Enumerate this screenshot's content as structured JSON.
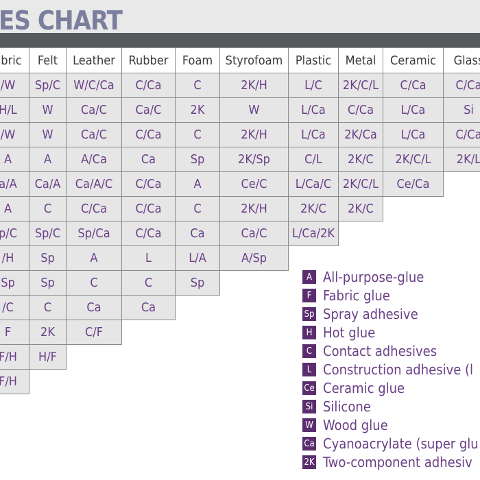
{
  "chart_data": {
    "type": "table",
    "title": "ES CHART",
    "columns": [
      "abric",
      "Felt",
      "Leather",
      "Rubber",
      "Foam",
      "Styrofoam",
      "Plastic",
      "Metal",
      "Ceramic",
      "Glass"
    ],
    "rows": [
      [
        "/W",
        "Sp/C",
        "W/C/Ca",
        "C/Ca",
        "C",
        "2K/H",
        "L/C",
        "2K/C/L",
        "C/Ca",
        "C/Ca"
      ],
      [
        "H/L",
        "W",
        "Ca/C",
        "Ca/C",
        "2K",
        "W",
        "L/Ca",
        "C/Ca",
        "L/Ca",
        "Si"
      ],
      [
        "/W",
        "W",
        "Ca/C",
        "C/Ca",
        "C",
        "2K/H",
        "L/Ca",
        "2K/Ca",
        "L/Ca",
        "C/Ca"
      ],
      [
        "A",
        "A",
        "A/Ca",
        "Ca",
        "Sp",
        "2K/Sp",
        "C/L",
        "2K/C",
        "2K/C/L",
        "2K/L"
      ],
      [
        "a/A",
        "Ca/A",
        "Ca/A/C",
        "C/Ca",
        "A",
        "Ce/C",
        "L/Ca/C",
        "2K/C/L",
        "Ce/Ca"
      ],
      [
        "A",
        "C",
        "C/Ca",
        "C/Ca",
        "C",
        "2K/H",
        "2K/C",
        "2K/C"
      ],
      [
        "p/C",
        "Sp/C",
        "Sp/Ca",
        "C/Ca",
        "Ca",
        "Ca/C",
        "L/Ca/2K"
      ],
      [
        "/H",
        "Sp",
        "A",
        "L",
        "L/A",
        "A/Sp"
      ],
      [
        "Sp",
        "Sp",
        "C",
        "C",
        "Sp"
      ],
      [
        "/C",
        "C",
        "Ca",
        "Ca"
      ],
      [
        "F",
        "2K",
        "C/F"
      ],
      [
        "F/H",
        "H/F"
      ],
      [
        "F/H"
      ]
    ]
  },
  "legend": [
    {
      "code": "A",
      "label": "All-purpose-glue"
    },
    {
      "code": "F",
      "label": "Fabric glue"
    },
    {
      "code": "Sp",
      "label": "Spray adhesive"
    },
    {
      "code": "H",
      "label": "Hot glue"
    },
    {
      "code": "C",
      "label": "Contact adhesives"
    },
    {
      "code": "L",
      "label": "Construction adhesive (l"
    },
    {
      "code": "Ce",
      "label": "Ceramic glue"
    },
    {
      "code": "Si",
      "label": "Silicone"
    },
    {
      "code": "W",
      "label": "Wood glue"
    },
    {
      "code": "Ca",
      "label": "Cyanoacrylate (super glu"
    },
    {
      "code": "2K",
      "label": "Two-component adhesiv"
    }
  ],
  "colors": {
    "title": "#7b7f9d",
    "band": "#58595b",
    "cell_bg": "#e6e6e7",
    "cell_text": "#6b3f86",
    "legend_box": "#5b2d6e"
  }
}
